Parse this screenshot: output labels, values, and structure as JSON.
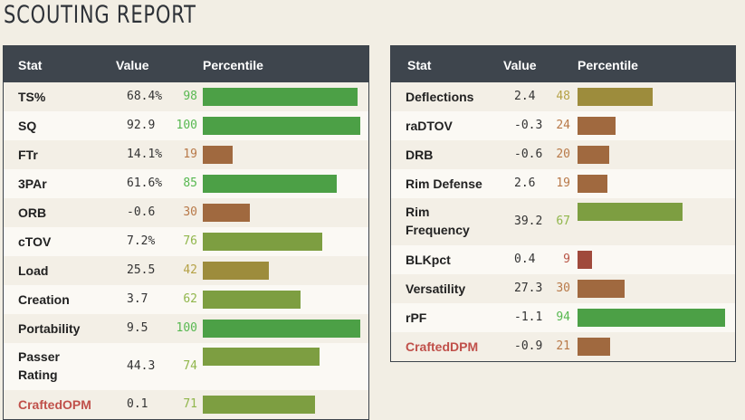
{
  "title": "SCOUTING REPORT",
  "headers": {
    "stat": "Stat",
    "value": "Value",
    "percentile": "Percentile"
  },
  "offense": [
    {
      "stat": "TS%",
      "value": "68.4%",
      "percentile": 98
    },
    {
      "stat": "SQ",
      "value": "92.9",
      "percentile": 100
    },
    {
      "stat": "FTr",
      "value": "14.1%",
      "percentile": 19
    },
    {
      "stat": "3PAr",
      "value": "61.6%",
      "percentile": 85
    },
    {
      "stat": "ORB",
      "value": "-0.6",
      "percentile": 30
    },
    {
      "stat": "cTOV",
      "value": "7.2%",
      "percentile": 76
    },
    {
      "stat": "Load",
      "value": "25.5",
      "percentile": 42
    },
    {
      "stat": "Creation",
      "value": "3.7",
      "percentile": 62
    },
    {
      "stat": "Portability",
      "value": "9.5",
      "percentile": 100
    },
    {
      "stat": "Passer Rating",
      "value": "44.3",
      "percentile": 74,
      "tall": true
    },
    {
      "stat": "CraftedOPM",
      "value": "0.1",
      "percentile": 71,
      "highlight": true
    }
  ],
  "defense": [
    {
      "stat": "Deflections",
      "value": "2.4",
      "percentile": 48
    },
    {
      "stat": "raDTOV",
      "value": "-0.3",
      "percentile": 24
    },
    {
      "stat": "DRB",
      "value": "-0.6",
      "percentile": 20
    },
    {
      "stat": "Rim Defense",
      "value": "2.6",
      "percentile": 19
    },
    {
      "stat": "Rim Frequency",
      "value": "39.2",
      "percentile": 67,
      "tall": true
    },
    {
      "stat": "BLKpct",
      "value": "0.4",
      "percentile": 9
    },
    {
      "stat": "Versatility",
      "value": "27.3",
      "percentile": 30
    },
    {
      "stat": "rPF",
      "value": "-1.1",
      "percentile": 94
    },
    {
      "stat": "CraftedDPM",
      "value": "-0.9",
      "percentile": 21,
      "highlight": true
    }
  ],
  "colors": {
    "elite": "#4ca046",
    "good": "#7d9e41",
    "mid": "#9d8c3c",
    "low": "#a0693f",
    "poor": "#a04a3c"
  }
}
